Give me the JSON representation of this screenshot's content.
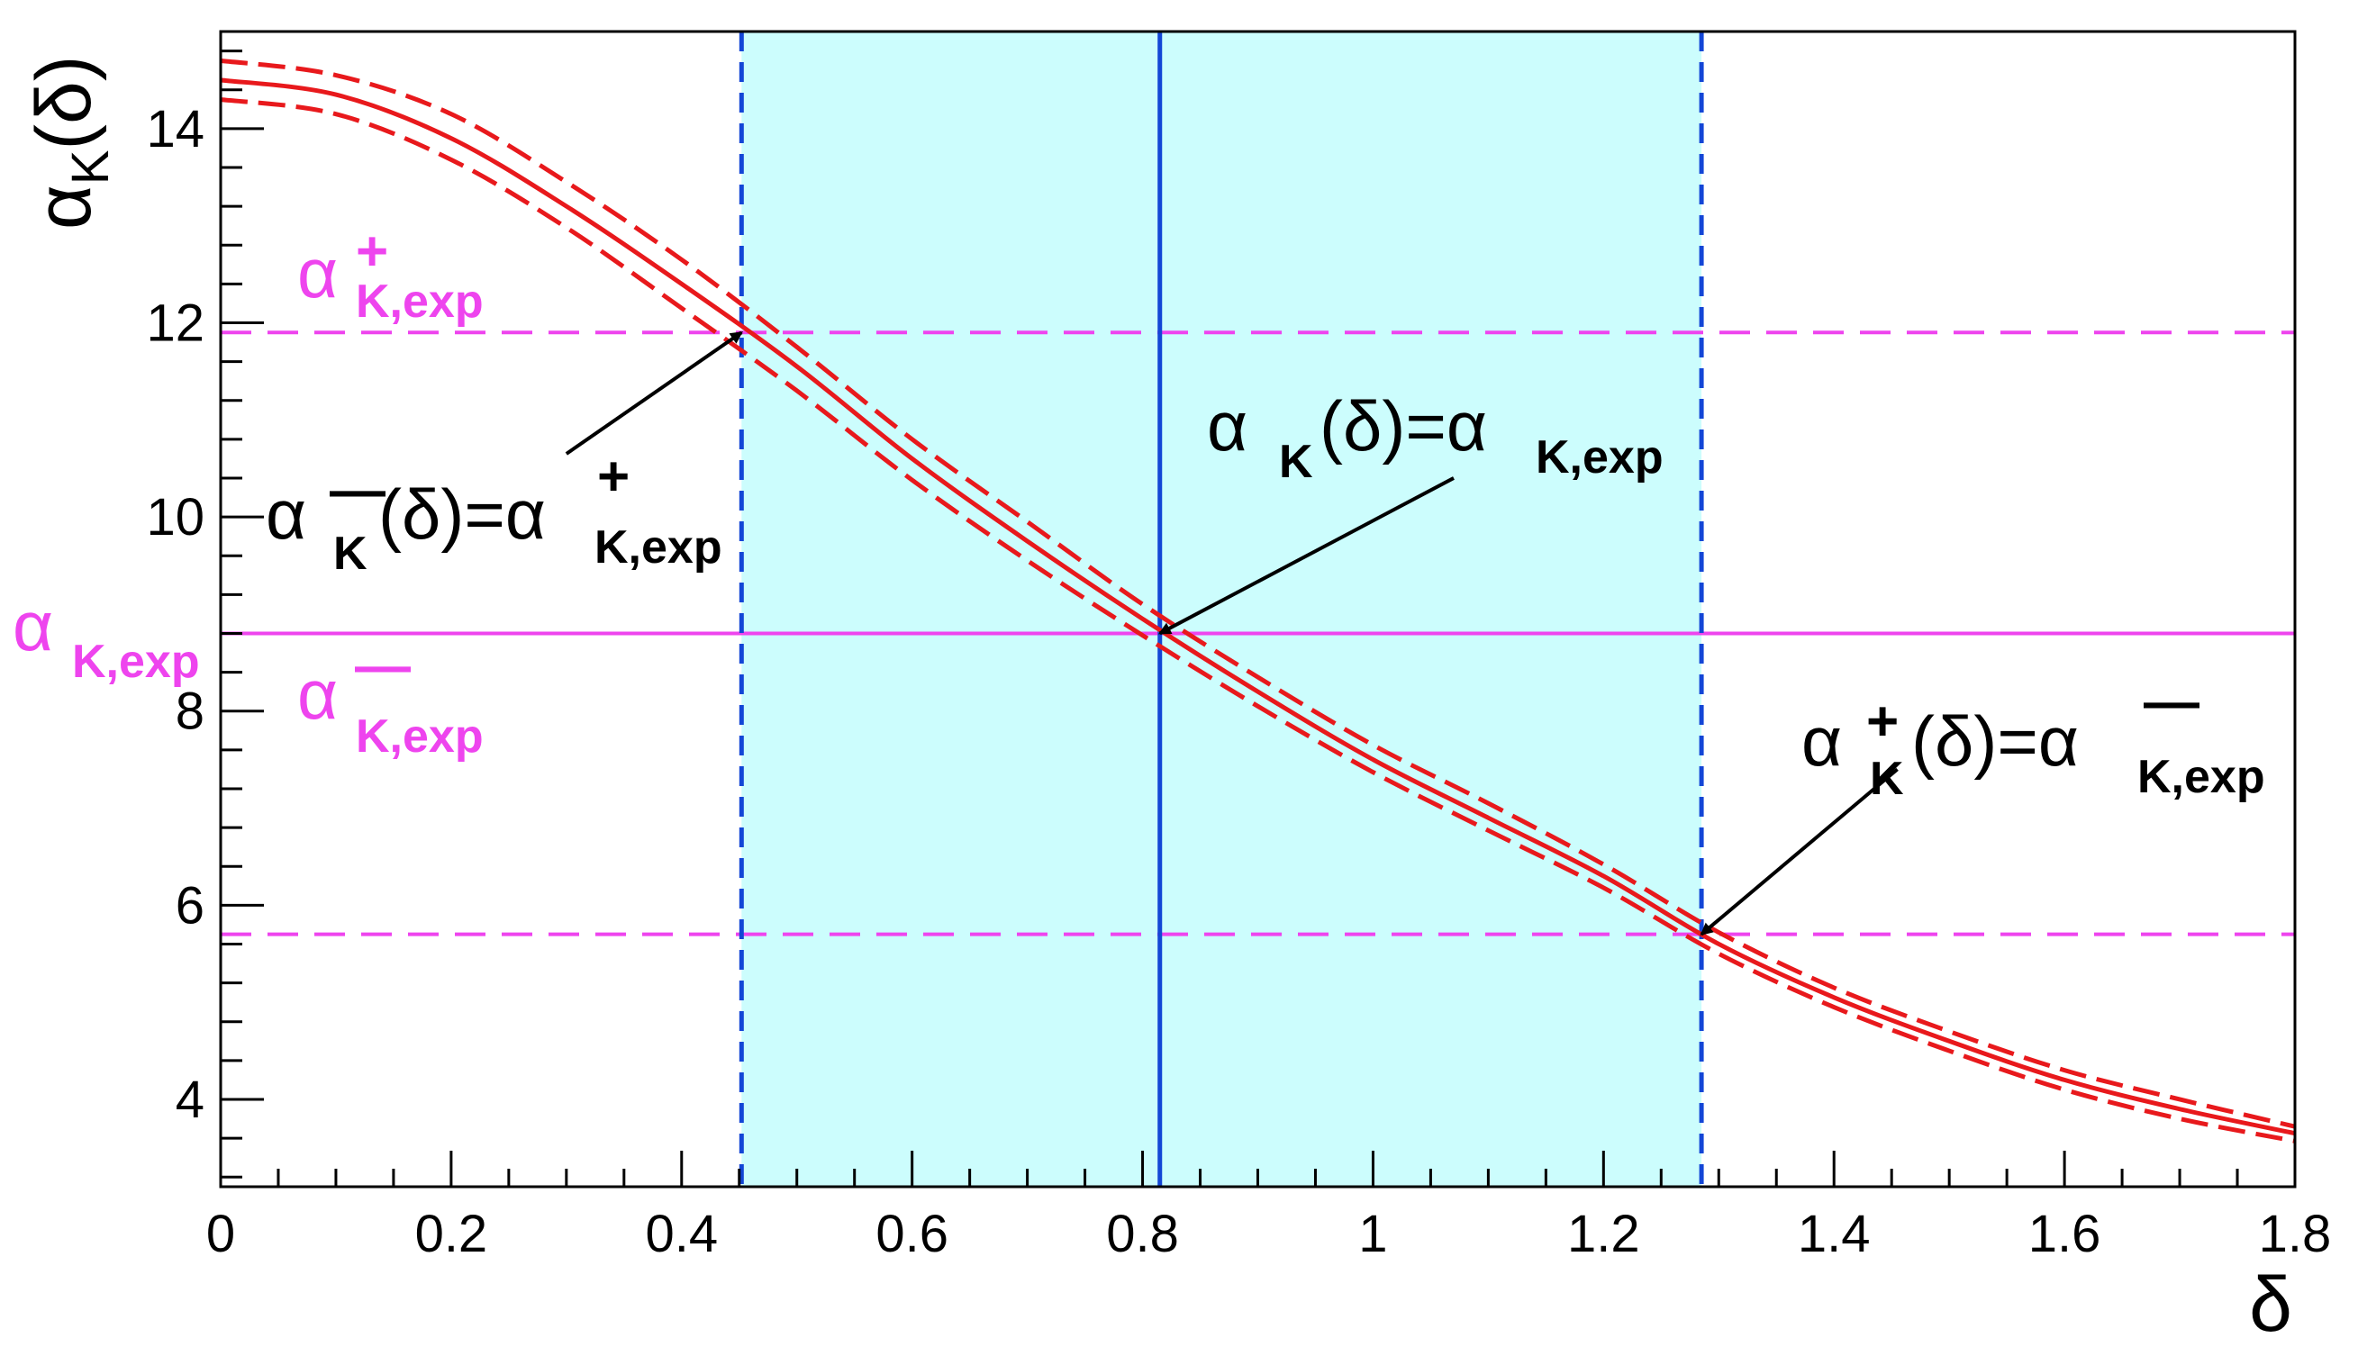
{
  "chart_data": {
    "type": "line",
    "title": "",
    "xlabel": "δ",
    "ylabel": "αK(δ)",
    "xlim": [
      0,
      1.8
    ],
    "ylim": [
      3.1,
      15.0
    ],
    "x_ticks": [
      0,
      0.2,
      0.4,
      0.6,
      0.8,
      1,
      1.2,
      1.4,
      1.6,
      1.8
    ],
    "x_tick_labels": [
      "0",
      "0.2",
      "0.4",
      "0.6",
      "0.8",
      "1",
      "1.2",
      "1.4",
      "1.6",
      "1.8"
    ],
    "y_ticks": [
      4,
      6,
      8,
      10,
      12,
      14
    ],
    "y_tick_labels": [
      "4",
      "6",
      "8",
      "10",
      "12",
      "14"
    ],
    "grid": false,
    "series": [
      {
        "style": "solid",
        "color": "#e8191c",
        "x": [
          0,
          0.1,
          0.2,
          0.3,
          0.4,
          0.5,
          0.6,
          0.7,
          0.8,
          0.9,
          1.0,
          1.1,
          1.2,
          1.3,
          1.4,
          1.5,
          1.6,
          1.7,
          1.8
        ],
        "y": [
          14.5,
          14.35,
          13.9,
          13.2,
          12.4,
          11.55,
          10.6,
          9.75,
          8.95,
          8.2,
          7.5,
          6.9,
          6.3,
          5.6,
          5.05,
          4.6,
          4.2,
          3.9,
          3.65
        ]
      },
      {
        "style": "dashed",
        "color": "#e8191c",
        "x": [
          0,
          0.1,
          0.2,
          0.3,
          0.4,
          0.5,
          0.6,
          0.7,
          0.8,
          0.9,
          1.0,
          1.1,
          1.2,
          1.3,
          1.4,
          1.5,
          1.6,
          1.7,
          1.8
        ],
        "y": [
          14.7,
          14.55,
          14.15,
          13.45,
          12.65,
          11.75,
          10.8,
          9.95,
          9.1,
          8.35,
          7.65,
          7.05,
          6.42,
          5.72,
          5.15,
          4.7,
          4.3,
          4.0,
          3.72
        ]
      },
      {
        "style": "dashed",
        "color": "#e8191c",
        "x": [
          0,
          0.1,
          0.2,
          0.3,
          0.4,
          0.5,
          0.6,
          0.7,
          0.8,
          0.9,
          1.0,
          1.1,
          1.2,
          1.3,
          1.4,
          1.5,
          1.6,
          1.7,
          1.8
        ],
        "y": [
          14.3,
          14.15,
          13.68,
          12.98,
          12.15,
          11.3,
          10.38,
          9.55,
          8.78,
          8.05,
          7.37,
          6.77,
          6.18,
          5.5,
          4.95,
          4.5,
          4.1,
          3.8,
          3.57
        ]
      }
    ],
    "horizontal_lines": [
      {
        "y": 11.9,
        "style": "dashed",
        "color": "#ee44ee"
      },
      {
        "y": 8.8,
        "style": "solid",
        "color": "#ee44ee"
      },
      {
        "y": 5.7,
        "style": "dashed",
        "color": "#ee44ee"
      }
    ],
    "vertical_lines": [
      {
        "x": 0.452,
        "style": "dashed",
        "color": "#1346d6"
      },
      {
        "x": 0.815,
        "style": "solid",
        "color": "#1346d6"
      },
      {
        "x": 1.285,
        "style": "dashed",
        "color": "#1346d6"
      }
    ],
    "band": {
      "x_from": 0.452,
      "x_to": 1.285,
      "color": "#ccfdfd"
    },
    "arrows": [
      {
        "from": [
          0.3,
          10.65
        ],
        "to": [
          0.452,
          11.9
        ]
      },
      {
        "from": [
          1.07,
          10.4
        ],
        "to": [
          0.815,
          8.8
        ]
      },
      {
        "from": [
          1.455,
          7.4
        ],
        "to": [
          1.285,
          5.7
        ]
      }
    ],
    "annotations": {
      "exp_plus": {
        "base": "α",
        "sup": "+",
        "sub": "K,exp"
      },
      "exp_central": {
        "base": "α",
        "sub": "K,exp"
      },
      "exp_minus": {
        "base": "α",
        "sup": "—",
        "sub": "K,exp"
      },
      "lower_crossing": {
        "lhs_base": "α",
        "lhs_sup": "—",
        "lhs_sub": "K",
        "mid": "(δ)=α",
        "rhs_sup": "+",
        "rhs_sub": "K,exp"
      },
      "central_crossing": {
        "lhs_base": "α",
        "lhs_sub": "K",
        "mid": "(δ)=α",
        "rhs_sub": "K,exp"
      },
      "upper_crossing": {
        "lhs_base": "α",
        "lhs_sup": "+",
        "lhs_sub": "K",
        "mid": "(δ)=α",
        "rhs_sup": "—",
        "rhs_sub": "K,exp"
      }
    },
    "colors": {
      "curve": "#e8191c",
      "magenta": "#ee44ee",
      "blue": "#1346d6",
      "band": "#ccfdfd"
    }
  }
}
